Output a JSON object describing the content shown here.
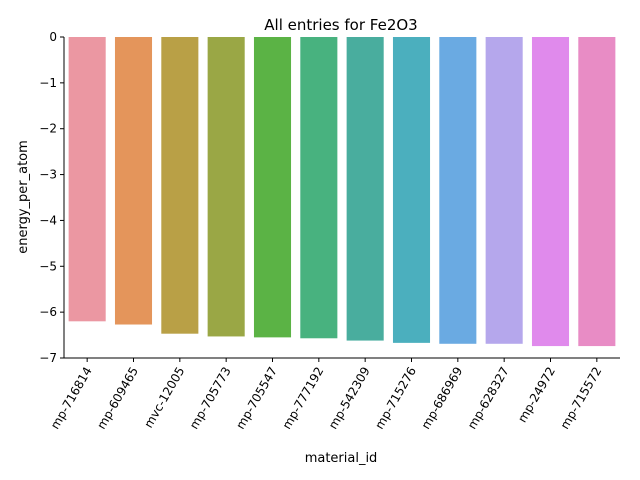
{
  "chart_data": {
    "type": "bar",
    "title": "All entries for Fe2O3",
    "xlabel": "material_id",
    "ylabel": "energy_per_atom",
    "categories": [
      "mp-716814",
      "mp-609465",
      "mvc-12005",
      "mp-705773",
      "mp-705547",
      "mp-777192",
      "mp-542309",
      "mp-715276",
      "mp-686969",
      "mp-628327",
      "mp-24972",
      "mp-715572"
    ],
    "values": [
      -6.2,
      -6.27,
      -6.47,
      -6.53,
      -6.55,
      -6.57,
      -6.62,
      -6.67,
      -6.69,
      -6.69,
      -6.74,
      -6.74
    ],
    "colors": [
      "#eb97a2",
      "#e4955b",
      "#b9a046",
      "#9aa745",
      "#5bb345",
      "#48b27f",
      "#49ad9e",
      "#4bafbe",
      "#6aaae2",
      "#b5a7ec",
      "#e08aec",
      "#e88cc5"
    ],
    "ylim": [
      -7.0,
      0
    ],
    "yticks": [
      0,
      -1,
      -2,
      -3,
      -4,
      -5,
      -6,
      -7
    ],
    "ytick_labels": [
      "0",
      "−1",
      "−2",
      "−3",
      "−4",
      "−5",
      "−6",
      "−7"
    ]
  }
}
